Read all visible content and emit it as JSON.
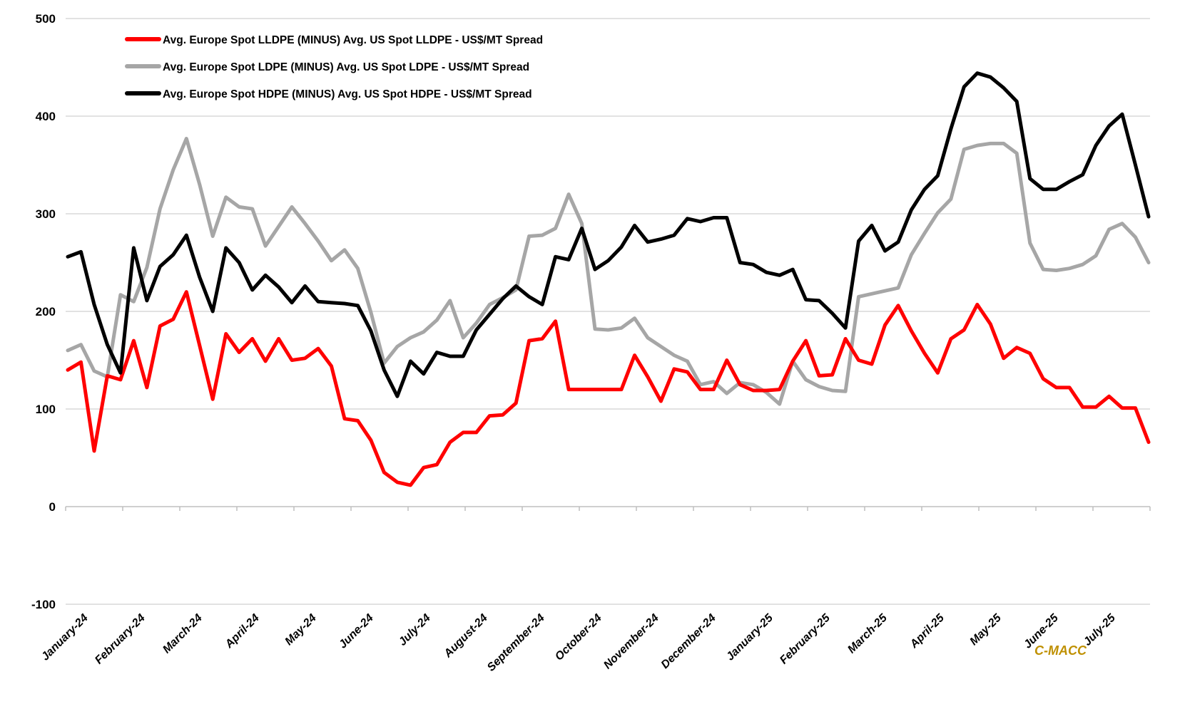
{
  "chart_data": {
    "type": "line",
    "title": "",
    "x_axis": {
      "categories": [
        "January-24",
        "February-24",
        "March-24",
        "April-24",
        "May-24",
        "June-24",
        "July-24",
        "August-24",
        "September-24",
        "October-24",
        "November-24",
        "December-24",
        "January-25",
        "February-25",
        "March-25",
        "April-25",
        "May-25",
        "June-25",
        "July-25"
      ],
      "tick_label_rotation": -45,
      "points_per_month": 4.368,
      "x_unit": "week"
    },
    "y_axis": {
      "min": -100,
      "max": 500,
      "tick_interval": 100,
      "tick_labels": [
        "500",
        "400",
        "300",
        "200",
        "100",
        "0",
        "-100"
      ],
      "tick_values": [
        500,
        400,
        300,
        200,
        100,
        0,
        -100
      ]
    },
    "grid": true,
    "gridline_color": "#d9d9d9",
    "axis_line_color": "#bfbfbf",
    "legend_position": "top-left",
    "series": [
      {
        "name": "Avg. Europe Spot LLDPE (MINUS) Avg. US Spot LLDPE - US$/MT Spread",
        "color": "#ff0000",
        "values": [
          140,
          148,
          57,
          134,
          130,
          170,
          122,
          185,
          192,
          220,
          165,
          110,
          177,
          158,
          172,
          149,
          172,
          150,
          152,
          162,
          144,
          90,
          88,
          68,
          35,
          25,
          22,
          40,
          43,
          66,
          76,
          76,
          93,
          94,
          106,
          170,
          172,
          190,
          120,
          120,
          120,
          120,
          120,
          155,
          133,
          108,
          141,
          138,
          120,
          120,
          150,
          125,
          119,
          119,
          120,
          149,
          170,
          134,
          135,
          172,
          150,
          146,
          186,
          206,
          180,
          157,
          137,
          172,
          181,
          207,
          187,
          152,
          163,
          157,
          131,
          122,
          122,
          102,
          102,
          113,
          101,
          101,
          66
        ]
      },
      {
        "name": "Avg. Europe Spot LDPE (MINUS) Avg. US Spot LDPE - US$/MT Spread",
        "color": "#a6a6a6",
        "values": [
          160,
          166,
          139,
          133,
          217,
          210,
          245,
          305,
          345,
          377,
          330,
          277,
          317,
          307,
          305,
          267,
          287,
          307,
          290,
          272,
          252,
          263,
          244,
          199,
          147,
          164,
          173,
          179,
          191,
          211,
          173,
          188,
          207,
          214,
          222,
          277,
          278,
          285,
          320,
          290,
          182,
          181,
          183,
          193,
          173,
          164,
          155,
          149,
          125,
          128,
          116,
          127,
          125,
          117,
          105,
          149,
          130,
          123,
          119,
          118,
          215,
          218,
          221,
          224,
          258,
          280,
          301,
          315,
          366,
          370,
          372,
          372,
          362,
          270,
          243,
          242,
          244,
          248,
          257,
          284,
          290,
          276,
          250
        ]
      },
      {
        "name": "Avg. Europe Spot HDPE (MINUS) Avg. US Spot HDPE - US$/MT Spread",
        "color": "#000000",
        "values": [
          256,
          261,
          207,
          166,
          137,
          265,
          211,
          246,
          258,
          278,
          235,
          200,
          265,
          250,
          222,
          237,
          225,
          209,
          226,
          210,
          209,
          208,
          206,
          180,
          140,
          113,
          149,
          136,
          158,
          154,
          154,
          181,
          197,
          213,
          226,
          215,
          207,
          256,
          253,
          285,
          243,
          252,
          266,
          288,
          271,
          274,
          278,
          295,
          292,
          296,
          296,
          250,
          248,
          240,
          237,
          243,
          212,
          211,
          198,
          183,
          272,
          288,
          262,
          271,
          304,
          325,
          339,
          387,
          430,
          444,
          440,
          429,
          415,
          336,
          325,
          325,
          333,
          340,
          370,
          390,
          402,
          350,
          297
        ]
      }
    ],
    "watermark": "C-MACC",
    "watermark_color": "#bf9000"
  }
}
